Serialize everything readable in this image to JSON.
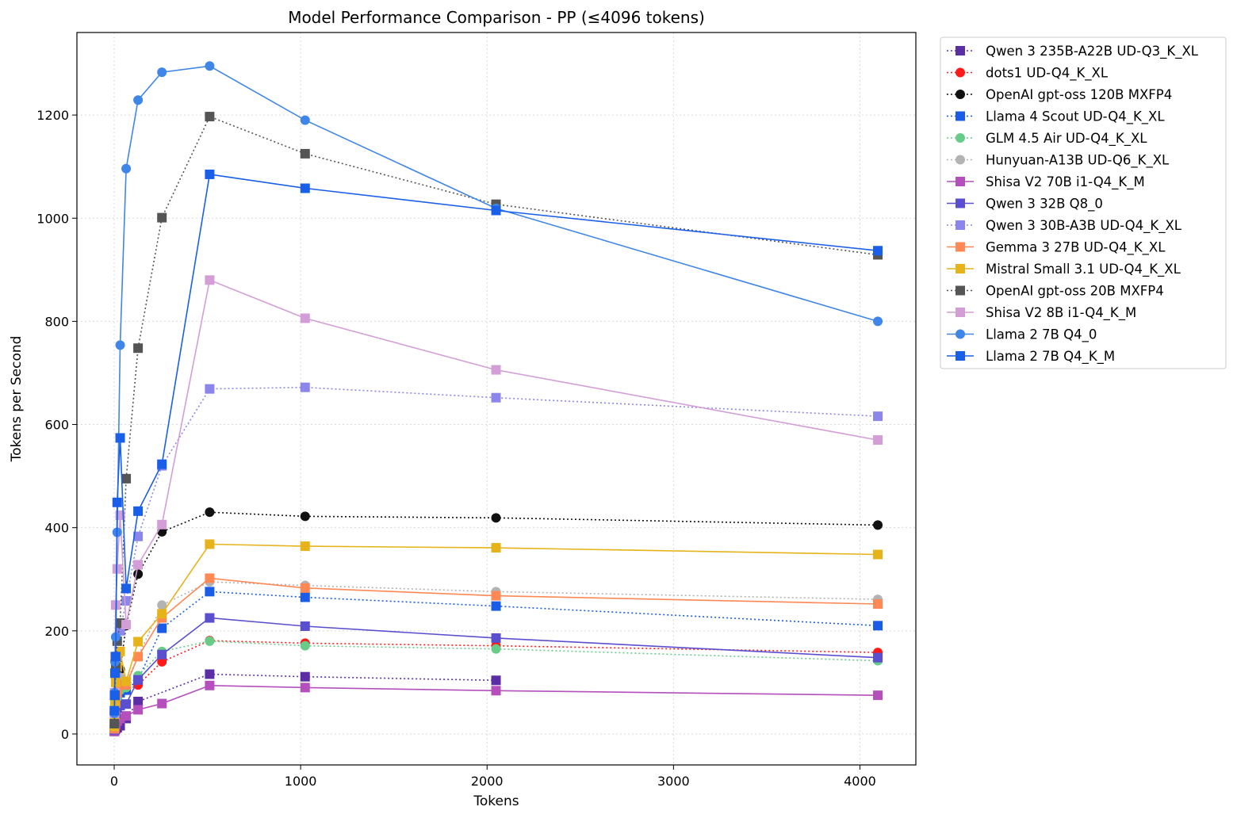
{
  "chart_data": {
    "type": "line",
    "title": "Model Performance Comparison - PP (≤4096 tokens)",
    "xlabel": "Tokens",
    "ylabel": "Tokens per Second",
    "xlim": [
      -200,
      4300
    ],
    "ylim": [
      -60,
      1360
    ],
    "xticks": [
      0,
      1000,
      2000,
      3000,
      4000
    ],
    "xtick_labels": [
      "0",
      "1000",
      "2000",
      "3000",
      "4000"
    ],
    "yticks": [
      0,
      200,
      400,
      600,
      800,
      1000,
      1200
    ],
    "ytick_labels": [
      "0",
      "200",
      "400",
      "600",
      "800",
      "1000",
      "1200"
    ],
    "grid": true,
    "legend_position": "outside-top-right",
    "series": [
      {
        "name": "Qwen 3 235B-A22B UD-Q3_K_XL",
        "color": "#5b2ea6",
        "marker": "square",
        "linestyle": "dotted",
        "x": [
          1,
          2,
          4,
          8,
          16,
          32,
          64,
          128,
          512,
          1024,
          2048
        ],
        "y": [
          5,
          7,
          8,
          10,
          12,
          16,
          30,
          63,
          116,
          111,
          104
        ]
      },
      {
        "name": "dots1 UD-Q4_K_XL",
        "color": "#ff1a1a",
        "marker": "circle",
        "linestyle": "dotted",
        "x": [
          1,
          2,
          4,
          8,
          16,
          32,
          64,
          128,
          256,
          512,
          1024,
          2048,
          4096
        ],
        "y": [
          8,
          15,
          25,
          40,
          60,
          80,
          85,
          95,
          140,
          181,
          176,
          171,
          158
        ]
      },
      {
        "name": "OpenAI gpt-oss 120B MXFP4",
        "color": "#111111",
        "marker": "circle",
        "linestyle": "dotted",
        "x": [
          1,
          2,
          4,
          8,
          16,
          32,
          64,
          128,
          256,
          512,
          1024,
          2048,
          4096
        ],
        "y": [
          10,
          18,
          35,
          65,
          95,
          125,
          210,
          310,
          392,
          430,
          422,
          419,
          405
        ]
      },
      {
        "name": "Llama 4 Scout UD-Q4_K_XL",
        "color": "#1a5ce6",
        "marker": "square",
        "linestyle": "dotted",
        "x": [
          1,
          2,
          4,
          8,
          16,
          32,
          64,
          128,
          256,
          512,
          1024,
          2048,
          4096
        ],
        "y": [
          10,
          20,
          35,
          55,
          70,
          80,
          85,
          105,
          205,
          276,
          265,
          248,
          210
        ]
      },
      {
        "name": "GLM 4.5 Air UD-Q4_K_XL",
        "color": "#66cc88",
        "marker": "circle",
        "linestyle": "dotted",
        "x": [
          1,
          2,
          4,
          8,
          16,
          32,
          64,
          128,
          256,
          512,
          1024,
          2048,
          4096
        ],
        "y": [
          10,
          20,
          35,
          55,
          70,
          85,
          90,
          113,
          160,
          180,
          171,
          165,
          142
        ]
      },
      {
        "name": "Hunyuan-A13B UD-Q6_K_XL",
        "color": "#b3b3b3",
        "marker": "circle",
        "linestyle": "dotted",
        "x": [
          1,
          2,
          4,
          8,
          16,
          32,
          64,
          128,
          256,
          512,
          1024,
          2048,
          4096
        ],
        "y": [
          10,
          25,
          45,
          70,
          95,
          110,
          100,
          150,
          250,
          295,
          288,
          276,
          261
        ]
      },
      {
        "name": "Shisa V2 70B i1-Q4_K_M",
        "color": "#b44fbc",
        "marker": "square",
        "linestyle": "solid",
        "x": [
          1,
          2,
          4,
          8,
          16,
          32,
          64,
          128,
          256,
          512,
          1024,
          2048,
          4096
        ],
        "y": [
          5,
          8,
          12,
          18,
          25,
          30,
          35,
          47,
          59,
          94,
          90,
          84,
          75
        ]
      },
      {
        "name": "Qwen 3 32B Q8_0",
        "color": "#5a4fcf",
        "marker": "square",
        "linestyle": "solid",
        "x": [
          1,
          2,
          4,
          8,
          16,
          32,
          64,
          128,
          256,
          512,
          1024,
          2048,
          4096
        ],
        "y": [
          8,
          15,
          25,
          40,
          50,
          55,
          58,
          105,
          154,
          225,
          209,
          186,
          148
        ]
      },
      {
        "name": "Qwen 3 30B-A3B UD-Q4_K_XL",
        "color": "#8b87ea",
        "marker": "square",
        "linestyle": "dotted",
        "x": [
          1,
          2,
          4,
          8,
          16,
          32,
          64,
          128,
          256,
          512,
          1024,
          2048,
          4096
        ],
        "y": [
          20,
          40,
          70,
          110,
          150,
          200,
          258,
          383,
          520,
          669,
          672,
          652,
          616
        ]
      },
      {
        "name": "Gemma 3 27B UD-Q4_K_XL",
        "color": "#ff8855",
        "marker": "square",
        "linestyle": "solid",
        "x": [
          1,
          2,
          4,
          8,
          16,
          32,
          64,
          128,
          256,
          512,
          1024,
          2048,
          4096
        ],
        "y": [
          10,
          20,
          35,
          60,
          80,
          95,
          95,
          150,
          225,
          302,
          283,
          268,
          252
        ]
      },
      {
        "name": "Mistral Small 3.1 UD-Q4_K_XL",
        "color": "#e6b31a",
        "marker": "square",
        "linestyle": "solid",
        "x": [
          1,
          2,
          4,
          8,
          16,
          32,
          64,
          128,
          256,
          512,
          1024,
          2048,
          4096
        ],
        "y": [
          15,
          30,
          60,
          100,
          130,
          160,
          102,
          179,
          233,
          368,
          364,
          361,
          348
        ]
      },
      {
        "name": "OpenAI gpt-oss 20B MXFP4",
        "color": "#555555",
        "marker": "square",
        "linestyle": "dotted",
        "x": [
          1,
          2,
          4,
          8,
          16,
          32,
          64,
          128,
          256,
          512,
          1024,
          2048,
          4096
        ],
        "y": [
          20,
          40,
          75,
          130,
          180,
          215,
          495,
          748,
          1001,
          1197,
          1125,
          1027,
          929
        ]
      },
      {
        "name": "Shisa V2 8B i1-Q4_K_M",
        "color": "#d39ed6",
        "marker": "square",
        "linestyle": "solid",
        "x": [
          1,
          2,
          4,
          8,
          16,
          32,
          64,
          128,
          256,
          512,
          1024,
          2048,
          4096
        ],
        "y": [
          40,
          80,
          150,
          250,
          320,
          424,
          212,
          328,
          406,
          880,
          806,
          706,
          570
        ]
      },
      {
        "name": "Llama 2 7B Q4_0",
        "color": "#3f86e8",
        "marker": "circle",
        "linestyle": "solid",
        "x": [
          1,
          2,
          4,
          8,
          16,
          32,
          64,
          128,
          256,
          512,
          1024,
          2048,
          4096
        ],
        "y": [
          40,
          80,
          140,
          188,
          391,
          754,
          1096,
          1229,
          1283,
          1295,
          1190,
          1019,
          800
        ]
      },
      {
        "name": "Llama 2 7B Q4_K_M",
        "color": "#1a5fe8",
        "marker": "square",
        "linestyle": "solid",
        "x": [
          1,
          2,
          4,
          8,
          16,
          32,
          64,
          128,
          256,
          512,
          1024,
          2048,
          4096
        ],
        "y": [
          45,
          75,
          118,
          150,
          449,
          574,
          282,
          432,
          523,
          1085,
          1058,
          1015,
          937
        ]
      }
    ]
  }
}
